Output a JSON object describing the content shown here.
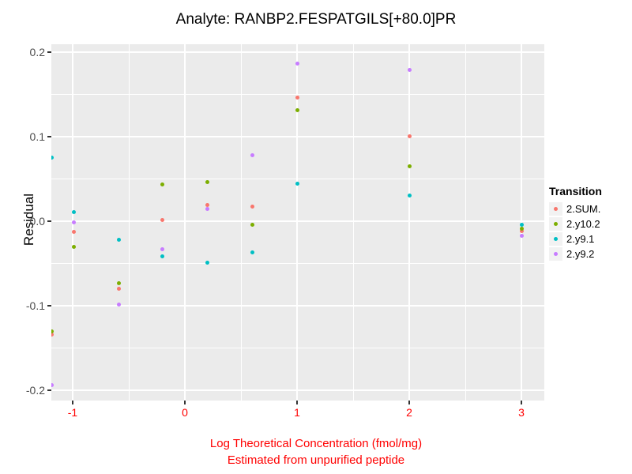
{
  "title": "Analyte: RANBP2.FESPATGILS[+80.0]PR",
  "axes": {
    "y_label": "Residual",
    "x_label_line1": "Log Theoretical Concentration (fmol/mg)",
    "x_label_line2": "Estimated from unpurified peptide",
    "x_label_color": "#ff0000",
    "x_tick_color": "#ff0000",
    "y_tick_color": "#4d4d4d"
  },
  "legend": {
    "title": "Transition",
    "items": [
      {
        "label": "2.SUM.",
        "color": "#F8766D"
      },
      {
        "label": "2.y10.2",
        "color": "#7CAE00"
      },
      {
        "label": "2.y9.1",
        "color": "#00BFC4"
      },
      {
        "label": "2.y9.2",
        "color": "#C77CFF"
      }
    ]
  },
  "chart_data": {
    "type": "scatter",
    "title": "Analyte: RANBP2.FESPATGILS[+80.0]PR",
    "xlabel": "Log Theoretical Concentration (fmol/mg) Estimated from unpurified peptide",
    "ylabel": "Residual",
    "xlim": [
      -1.1901,
      3.2041
    ],
    "ylim": [
      -0.2122,
      0.2093
    ],
    "grid": true,
    "legend_position": "right",
    "panel_background": "#ebebeb",
    "x_ticks": [
      {
        "value": -1,
        "label": "-1"
      },
      {
        "value": 0,
        "label": "0"
      },
      {
        "value": 1,
        "label": "1"
      },
      {
        "value": 2,
        "label": "2"
      },
      {
        "value": 3,
        "label": "3"
      }
    ],
    "y_ticks": [
      {
        "value": 0.2,
        "label": "0.2"
      },
      {
        "value": 0.1,
        "label": "0.1"
      },
      {
        "value": 0.0,
        "label": "0.0"
      },
      {
        "value": -0.1,
        "label": "-0.1"
      },
      {
        "value": -0.2,
        "label": "-0.2"
      }
    ],
    "x_minor": [
      -0.5,
      0.5,
      1.5,
      2.5
    ],
    "y_minor": [
      0.15,
      0.05,
      -0.05,
      -0.15
    ],
    "x": [
      -1.19,
      -0.99,
      -0.59,
      -0.2,
      0.2,
      0.6,
      1.0,
      2.0,
      3.0
    ],
    "series": [
      {
        "name": "2.SUM.",
        "color": "#F8766D",
        "values": [
          -0.134,
          -0.013,
          -0.08,
          0.001,
          0.019,
          0.017,
          0.146,
          0.1,
          -0.012
        ]
      },
      {
        "name": "2.y10.2",
        "color": "#7CAE00",
        "values": [
          -0.13,
          -0.03,
          -0.073,
          0.043,
          0.046,
          -0.004,
          0.131,
          0.065,
          -0.009
        ]
      },
      {
        "name": "2.y9.1",
        "color": "#00BFC4",
        "values": [
          0.075,
          0.011,
          -0.022,
          -0.042,
          -0.049,
          -0.037,
          0.044,
          0.03,
          -0.004
        ]
      },
      {
        "name": "2.y9.2",
        "color": "#C77CFF",
        "values": [
          -0.194,
          -0.001,
          -0.099,
          -0.033,
          0.014,
          0.078,
          0.186,
          0.179,
          -0.017
        ]
      }
    ]
  }
}
